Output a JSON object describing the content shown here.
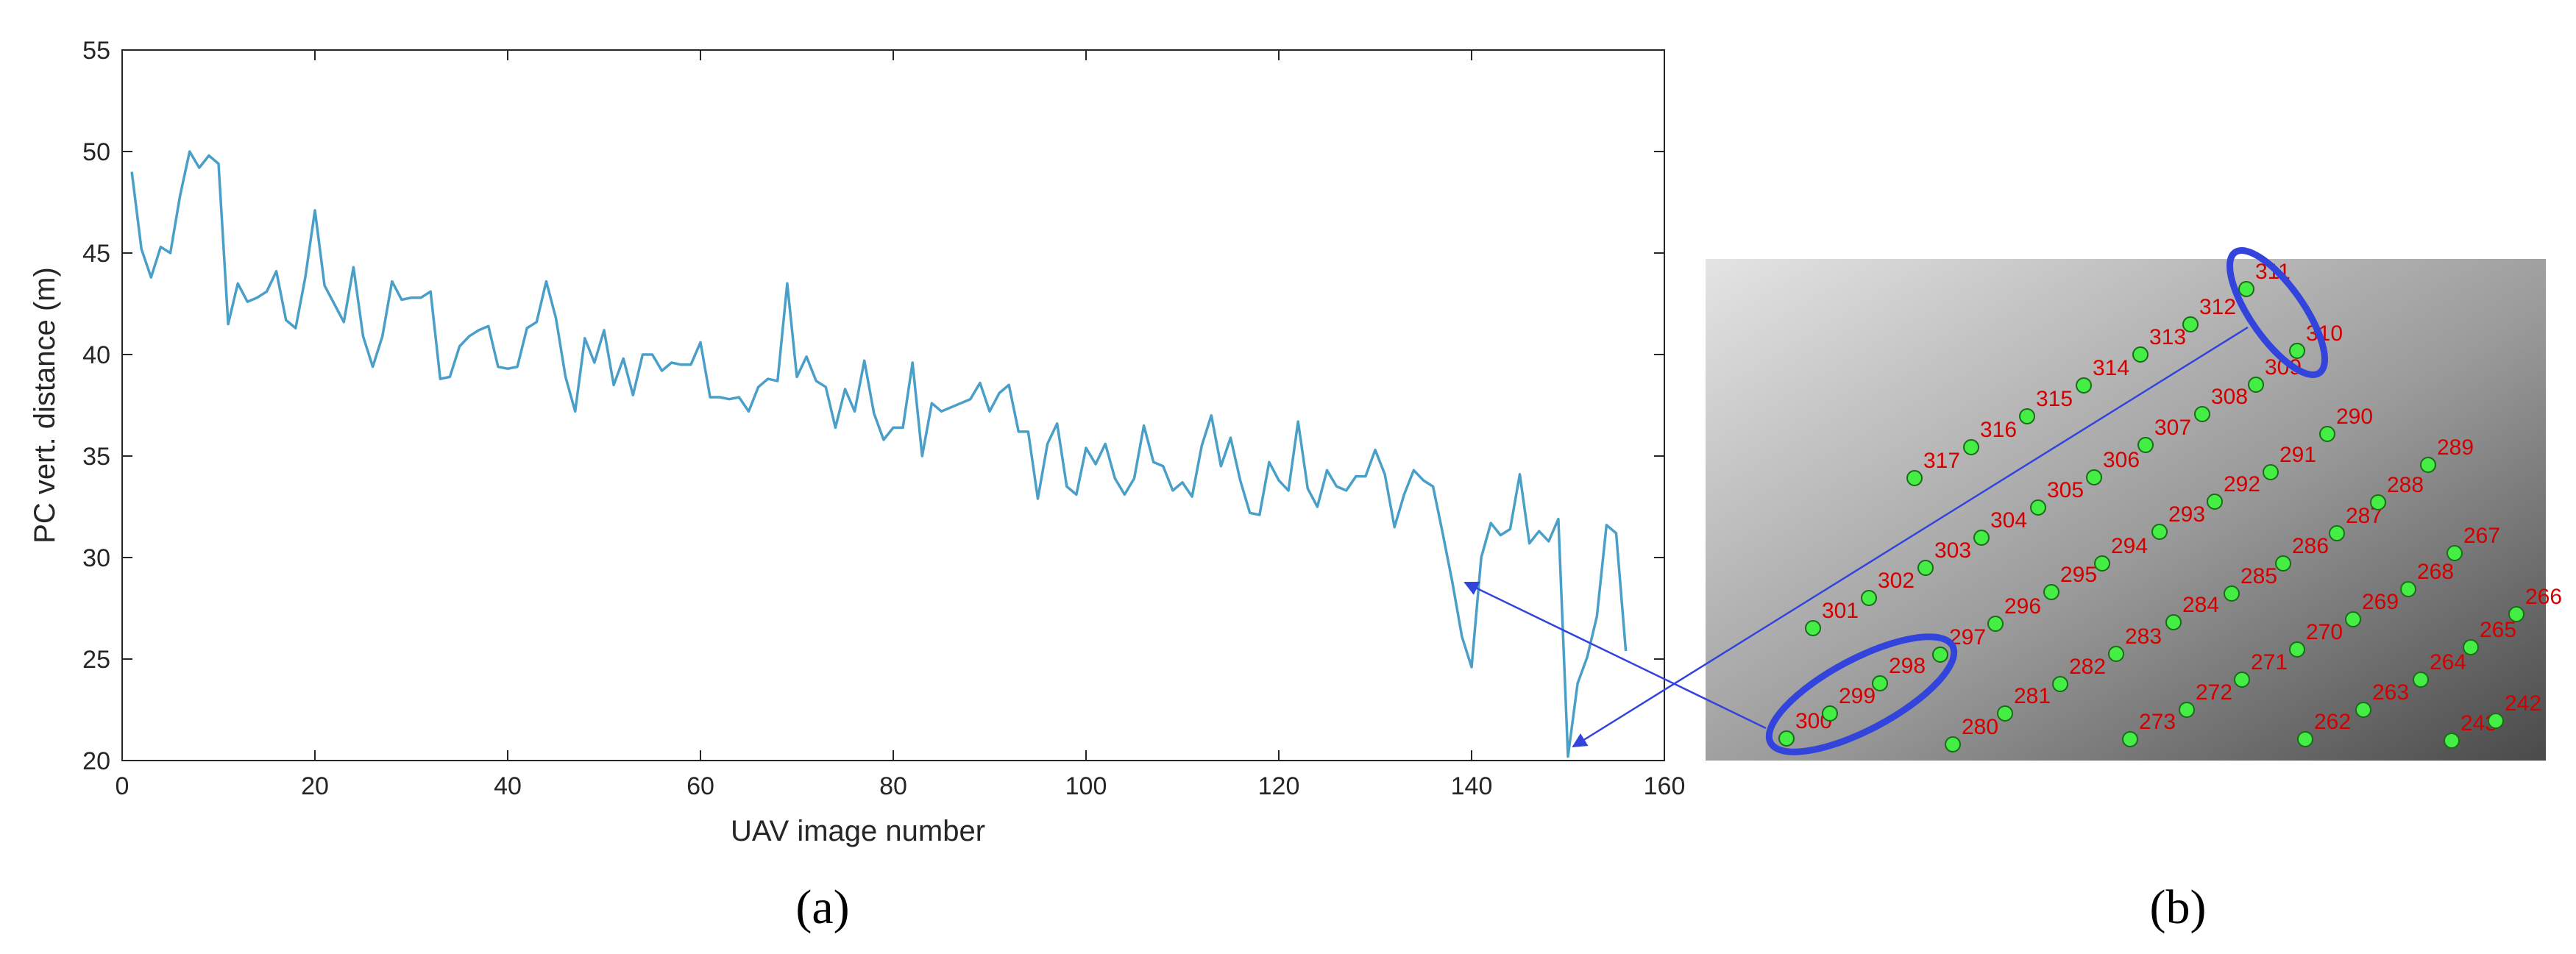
{
  "chart_data": [
    {
      "type": "line",
      "xlabel": "UAV image number",
      "ylabel": "PC vert. distance (m)",
      "xlim": [
        0,
        160
      ],
      "ylim": [
        20,
        55
      ],
      "xticks": [
        0,
        20,
        40,
        60,
        80,
        100,
        120,
        140,
        160
      ],
      "yticks": [
        20,
        25,
        30,
        35,
        40,
        45,
        50,
        55
      ],
      "grid": false,
      "line_color": "#4a9fc8",
      "series": [
        {
          "x": [
            1,
            2,
            3,
            4,
            5,
            6,
            7,
            8,
            9,
            10,
            11,
            12,
            13,
            14,
            15,
            16,
            17,
            18,
            19,
            20,
            21,
            22,
            23,
            24,
            25,
            26,
            27,
            28,
            29,
            30,
            31,
            32,
            33,
            34,
            35,
            36,
            37,
            38,
            39,
            40,
            41,
            42,
            43,
            44,
            45,
            46,
            47,
            48,
            49,
            50,
            51,
            52,
            53,
            54,
            55,
            56,
            57,
            58,
            59,
            60,
            61,
            62,
            63,
            64,
            65,
            66,
            67,
            68,
            69,
            70,
            71,
            72,
            73,
            74,
            75,
            76,
            77,
            78,
            79,
            80,
            81,
            82,
            83,
            84,
            85,
            86,
            87,
            88,
            89,
            90,
            91,
            92,
            93,
            94,
            95,
            96,
            97,
            98,
            99,
            100,
            101,
            102,
            103,
            104,
            105,
            106,
            107,
            108,
            109,
            110,
            111,
            112,
            113,
            114,
            115,
            116,
            117,
            118,
            119,
            120,
            121,
            122,
            123,
            124,
            125,
            126,
            127,
            128,
            129,
            130,
            131,
            132,
            133,
            134,
            135,
            136,
            137,
            138,
            139,
            140,
            141,
            142,
            143,
            144,
            145,
            146,
            147,
            148,
            149,
            150,
            151,
            152,
            153,
            154,
            155,
            156
          ],
          "y": [
            49,
            45.2,
            43.8,
            45.3,
            45,
            47.8,
            50,
            49.2,
            49.8,
            49.4,
            41.5,
            43.5,
            42.6,
            42.8,
            43.1,
            44.1,
            41.7,
            41.3,
            43.8,
            47.1,
            43.4,
            42.5,
            41.6,
            44.3,
            40.9,
            39.4,
            40.9,
            43.6,
            42.7,
            42.8,
            42.8,
            43.1,
            38.8,
            38.9,
            40.4,
            40.9,
            41.2,
            41.4,
            39.4,
            39.3,
            39.4,
            41.3,
            41.6,
            43.6,
            41.8,
            38.9,
            37.2,
            40.8,
            39.6,
            41.2,
            38.5,
            39.8,
            38,
            40,
            40,
            39.2,
            39.6,
            39.5,
            39.5,
            40.6,
            37.9,
            37.9,
            37.8,
            37.9,
            37.2,
            38.4,
            38.8,
            38.7,
            43.5,
            38.9,
            39.9,
            38.7,
            38.4,
            36.4,
            38.3,
            37.2,
            39.7,
            37.1,
            35.8,
            36.4,
            36.4,
            39.6,
            35,
            37.6,
            37.2,
            37.4,
            37.6,
            37.8,
            38.6,
            37.2,
            38.1,
            38.5,
            36.2,
            36.2,
            32.9,
            35.6,
            36.6,
            33.5,
            33.1,
            35.4,
            34.6,
            35.6,
            33.9,
            33.1,
            33.9,
            36.5,
            34.7,
            34.5,
            33.3,
            33.7,
            33,
            35.5,
            37,
            34.5,
            35.9,
            33.8,
            32.2,
            32.1,
            34.7,
            33.8,
            33.3,
            36.7,
            33.4,
            32.5,
            34.3,
            33.5,
            33.3,
            34,
            34,
            35.3,
            34.1,
            31.5,
            33.1,
            34.3,
            33.8,
            33.5,
            31.2,
            28.8,
            26.1,
            24.6,
            30,
            31.7,
            31.1,
            31.4,
            34.1,
            30.7,
            31.3,
            30.8,
            31.9,
            20.2,
            23.8,
            25.1,
            27.1,
            31.6,
            31.2,
            25.4
          ]
        }
      ]
    },
    {
      "type": "scatter",
      "background": "#8a8a8a",
      "point_color": "#44ee44",
      "label_color": "#d40000",
      "highlight_color": "#3344dd",
      "points": [
        {
          "id": "317",
          "label": "317"
        },
        {
          "id": "316",
          "label": "316"
        },
        {
          "id": "315",
          "label": "315"
        },
        {
          "id": "314",
          "label": "314"
        },
        {
          "id": "313",
          "label": "313"
        },
        {
          "id": "312",
          "label": "312"
        },
        {
          "id": "311",
          "label": "311"
        },
        {
          "id": "301",
          "label": "301"
        },
        {
          "id": "302",
          "label": "302"
        },
        {
          "id": "303",
          "label": "303"
        },
        {
          "id": "304",
          "label": "304"
        },
        {
          "id": "305",
          "label": "305"
        },
        {
          "id": "306",
          "label": "306"
        },
        {
          "id": "307",
          "label": "307"
        },
        {
          "id": "308",
          "label": "308"
        },
        {
          "id": "309",
          "label": "309"
        },
        {
          "id": "310",
          "label": "310"
        },
        {
          "id": "300",
          "label": "300"
        },
        {
          "id": "299",
          "label": "299"
        },
        {
          "id": "298",
          "label": "298"
        },
        {
          "id": "297",
          "label": "297"
        },
        {
          "id": "296",
          "label": "296"
        },
        {
          "id": "295",
          "label": "295"
        },
        {
          "id": "294",
          "label": "294"
        },
        {
          "id": "293",
          "label": "293"
        },
        {
          "id": "292",
          "label": "292"
        },
        {
          "id": "291",
          "label": "291"
        },
        {
          "id": "290",
          "label": "290"
        },
        {
          "id": "280",
          "label": "280"
        },
        {
          "id": "281",
          "label": "281"
        },
        {
          "id": "282",
          "label": "282"
        },
        {
          "id": "283",
          "label": "283"
        },
        {
          "id": "284",
          "label": "284"
        },
        {
          "id": "285",
          "label": "285"
        },
        {
          "id": "286",
          "label": "286"
        },
        {
          "id": "287",
          "label": "287"
        },
        {
          "id": "288",
          "label": "288"
        },
        {
          "id": "289",
          "label": "289"
        },
        {
          "id": "273",
          "label": "273"
        },
        {
          "id": "272",
          "label": "272"
        },
        {
          "id": "271",
          "label": "271"
        },
        {
          "id": "270",
          "label": "270"
        },
        {
          "id": "269",
          "label": "269"
        },
        {
          "id": "268",
          "label": "268"
        },
        {
          "id": "267",
          "label": "267"
        },
        {
          "id": "262",
          "label": "262"
        },
        {
          "id": "263",
          "label": "263"
        },
        {
          "id": "264",
          "label": "264"
        },
        {
          "id": "265",
          "label": "265"
        },
        {
          "id": "266",
          "label": "266"
        },
        {
          "id": "243",
          "label": "243"
        },
        {
          "id": "242",
          "label": "242"
        }
      ]
    }
  ],
  "panels": {
    "a": "(a)",
    "b": "(b)"
  }
}
